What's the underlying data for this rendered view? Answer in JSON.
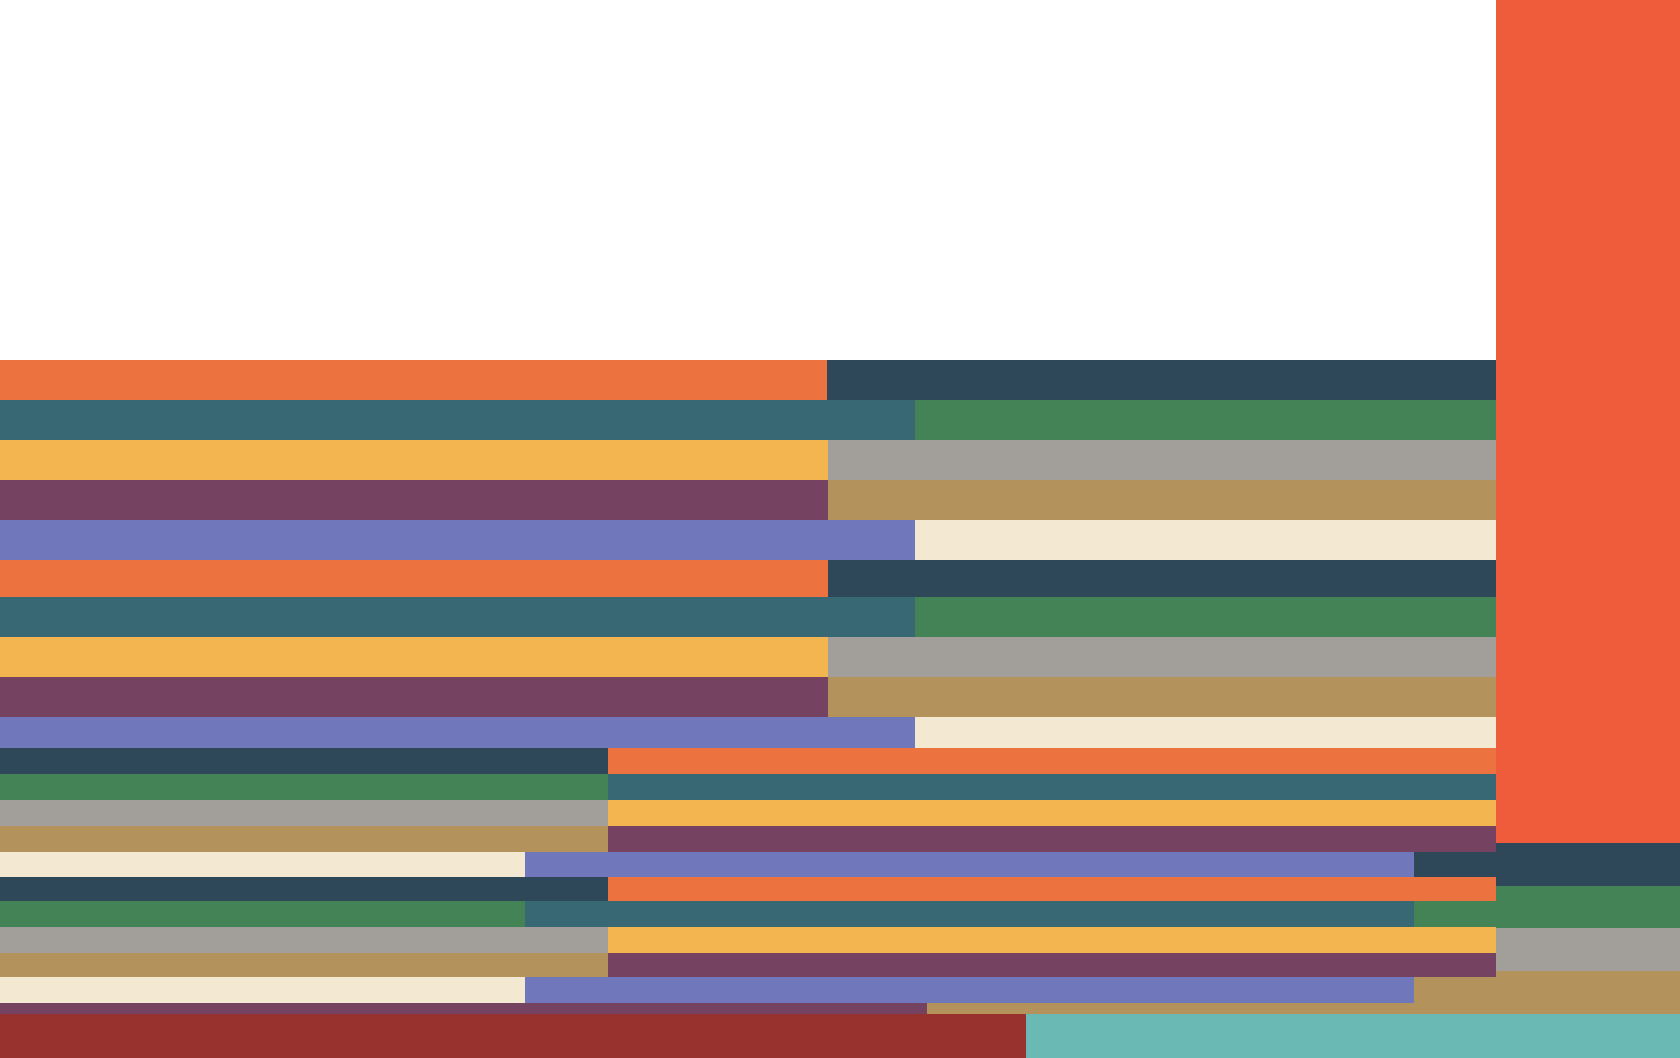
{
  "palette": {
    "orange": "#EC7340",
    "navy": "#2E4759",
    "teal": "#376873",
    "green": "#438355",
    "yellow": "#F3B550",
    "gray": "#A29F9A",
    "purple": "#754262",
    "tan": "#B3935B",
    "periwinkle": "#7078BB",
    "cream": "#F3E8D1",
    "red_orange": "#EE5C3B",
    "dark_red": "#98322E",
    "aqua": "#6BB9B5",
    "white": "#FFFFFF"
  },
  "artwork": {
    "title": "",
    "blocks": [
      {
        "name": "color-block-orange-1",
        "color": "orange"
      },
      {
        "name": "color-block-navy-1",
        "color": "navy"
      },
      {
        "name": "color-block-teal-1",
        "color": "teal"
      },
      {
        "name": "color-block-green-1",
        "color": "green"
      },
      {
        "name": "color-block-yellow-1",
        "color": "yellow"
      },
      {
        "name": "color-block-gray-1",
        "color": "gray"
      },
      {
        "name": "color-block-purple-1",
        "color": "purple"
      },
      {
        "name": "color-block-tan-1",
        "color": "tan"
      },
      {
        "name": "color-block-periwinkle-1",
        "color": "periwinkle"
      },
      {
        "name": "color-block-cream-1",
        "color": "cream"
      },
      {
        "name": "color-block-orange-2",
        "color": "orange"
      },
      {
        "name": "color-block-navy-2",
        "color": "navy"
      },
      {
        "name": "color-block-teal-2",
        "color": "teal"
      },
      {
        "name": "color-block-green-2",
        "color": "green"
      },
      {
        "name": "color-block-yellow-2",
        "color": "yellow"
      },
      {
        "name": "color-block-gray-2",
        "color": "gray"
      },
      {
        "name": "color-block-purple-2",
        "color": "purple"
      },
      {
        "name": "color-block-tan-2",
        "color": "tan"
      },
      {
        "name": "color-block-periwinkle-2",
        "color": "periwinkle"
      },
      {
        "name": "color-block-cream-2",
        "color": "cream"
      },
      {
        "name": "color-block-navy-3",
        "color": "navy"
      },
      {
        "name": "color-block-orange-3",
        "color": "orange"
      },
      {
        "name": "color-block-green-3",
        "color": "green"
      },
      {
        "name": "color-block-teal-3",
        "color": "teal"
      },
      {
        "name": "color-block-gray-3",
        "color": "gray"
      },
      {
        "name": "color-block-yellow-3",
        "color": "yellow"
      },
      {
        "name": "color-block-tan-3",
        "color": "tan"
      },
      {
        "name": "color-block-purple-3",
        "color": "purple"
      },
      {
        "name": "color-block-cream-3",
        "color": "cream"
      },
      {
        "name": "color-block-periwinkle-3",
        "color": "periwinkle"
      },
      {
        "name": "color-block-navy-4",
        "color": "navy"
      },
      {
        "name": "color-block-navy-5",
        "color": "navy"
      },
      {
        "name": "color-block-orange-4",
        "color": "orange"
      },
      {
        "name": "color-block-green-4",
        "color": "green"
      },
      {
        "name": "color-block-teal-4",
        "color": "teal"
      },
      {
        "name": "color-block-green-5",
        "color": "green"
      },
      {
        "name": "color-block-gray-4",
        "color": "gray"
      },
      {
        "name": "color-block-yellow-4",
        "color": "yellow"
      },
      {
        "name": "color-block-tan-4",
        "color": "tan"
      },
      {
        "name": "color-block-purple-4",
        "color": "purple"
      },
      {
        "name": "color-block-cream-4",
        "color": "cream"
      },
      {
        "name": "color-block-periwinkle-4",
        "color": "periwinkle"
      },
      {
        "name": "color-block-tan-5",
        "color": "tan"
      },
      {
        "name": "color-block-purple-5",
        "color": "purple"
      },
      {
        "name": "color-block-tan-6",
        "color": "tan"
      },
      {
        "name": "color-block-red-orange",
        "color": "red_orange"
      },
      {
        "name": "color-block-navy-6",
        "color": "navy"
      },
      {
        "name": "color-block-green-6",
        "color": "green"
      },
      {
        "name": "color-block-gray-5",
        "color": "gray"
      },
      {
        "name": "color-block-tan-7",
        "color": "tan"
      },
      {
        "name": "color-block-dark-red",
        "color": "dark_red"
      },
      {
        "name": "color-block-aqua",
        "color": "aqua"
      }
    ]
  }
}
